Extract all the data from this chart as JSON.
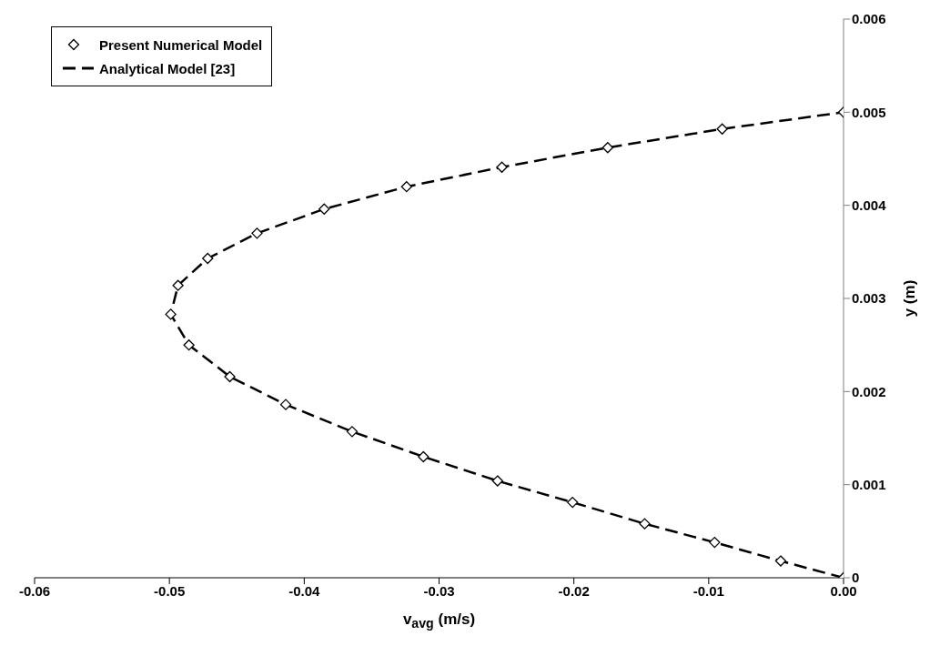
{
  "chart_data": {
    "type": "scatter",
    "xlabel": "v$_{avg}$ (m/s)",
    "ylabel": "y (m)",
    "xlim": [
      -0.06,
      0
    ],
    "xticks": [
      -0.06,
      -0.05,
      -0.04,
      -0.03,
      -0.02,
      -0.01,
      {
        "value": 0,
        "label": "0.00"
      }
    ],
    "ylim": [
      0,
      0.006
    ],
    "yticks": [
      0,
      0.001,
      0.002,
      0.003,
      0.004,
      0.005,
      0.006
    ],
    "grid": false,
    "legend": "top left",
    "series": [
      {
        "name": "Present Numerical Model",
        "marker": "diamond",
        "color": "#000000",
        "x": [
          0,
          -0.00466,
          -0.00956,
          -0.01475,
          -0.0201,
          -0.02566,
          -0.03116,
          -0.03645,
          -0.04137,
          -0.04552,
          -0.04855,
          -0.0499,
          -0.04936,
          -0.04716,
          -0.0435,
          -0.03852,
          -0.03241,
          -0.02534,
          -0.01749,
          -0.009,
          0
        ],
        "values": [
          0,
          0.00018,
          0.00038,
          0.00058,
          0.00081,
          0.00104,
          0.0013,
          0.00157,
          0.00186,
          0.00216,
          0.0025,
          0.00283,
          0.00314,
          0.00343,
          0.0037,
          0.00396,
          0.0042,
          0.00441,
          0.00462,
          0.00482,
          0.005
        ]
      },
      {
        "name": "Analytical Model [23]",
        "type": "line",
        "line_style": "dashed",
        "marker": "none",
        "color": "#000000",
        "x": [
          0,
          -0.00466,
          -0.00956,
          -0.01475,
          -0.0201,
          -0.02566,
          -0.03116,
          -0.03645,
          -0.04137,
          -0.04552,
          -0.04855,
          -0.0499,
          -0.04936,
          -0.04716,
          -0.0435,
          -0.03852,
          -0.03241,
          -0.02534,
          -0.01749,
          -0.009,
          0
        ],
        "values": [
          0,
          0.00018,
          0.00038,
          0.00058,
          0.00081,
          0.00104,
          0.0013,
          0.00157,
          0.00186,
          0.00216,
          0.0025,
          0.00283,
          0.00314,
          0.00343,
          0.0037,
          0.00396,
          0.0042,
          0.00441,
          0.00462,
          0.00482,
          0.005
        ]
      }
    ]
  }
}
